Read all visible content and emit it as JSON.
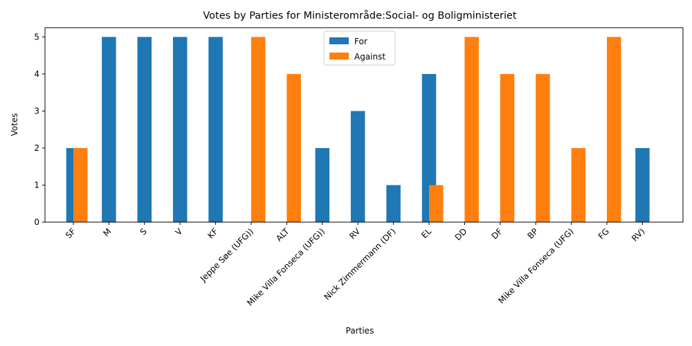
{
  "chart_data": {
    "type": "bar",
    "title": "Votes by Parties for Ministerområde:Social- og Boligministeriet",
    "xlabel": "Parties",
    "ylabel": "Votes",
    "ylim": [
      0,
      5.25
    ],
    "yticks": [
      0,
      1,
      2,
      3,
      4,
      5
    ],
    "categories": [
      "SF",
      "M",
      "S",
      "V",
      "KF",
      "Jeppe Søe (UFG))",
      "ALT",
      "Mike Villa Fonseca (UFG))",
      "RV",
      "Nick Zimmermann (DF)",
      "EL",
      "DD",
      "DF",
      "BP",
      "Mike Villa Fonseca (UFG)",
      "FG",
      "RV)"
    ],
    "series": [
      {
        "name": "For",
        "color": "#1f77b4",
        "values": [
          2,
          5,
          5,
          5,
          5,
          0,
          0,
          2,
          3,
          1,
          4,
          0,
          0,
          0,
          0,
          0,
          2
        ]
      },
      {
        "name": "Against",
        "color": "#ff7f0e",
        "values": [
          2,
          0,
          0,
          0,
          0,
          5,
          4,
          0,
          0,
          0,
          1,
          5,
          4,
          4,
          2,
          5,
          0
        ]
      }
    ],
    "legend": {
      "placement": "top-center"
    },
    "grid": false
  }
}
